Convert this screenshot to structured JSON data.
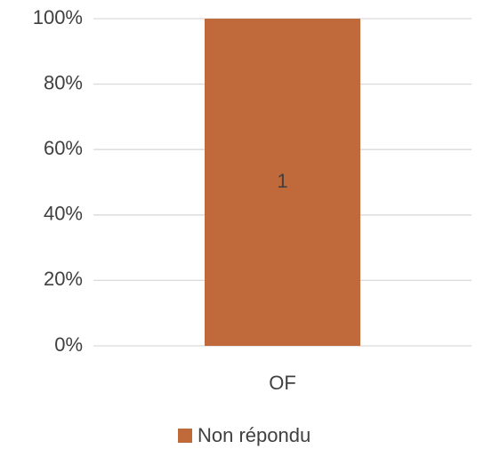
{
  "chart_data": {
    "type": "stacked_percent_bar",
    "categories": [
      "OF"
    ],
    "series": [
      {
        "name": "Non répondu",
        "color": "#c0693b",
        "values": [
          100
        ],
        "counts": [
          1
        ]
      }
    ],
    "ylim": [
      0,
      100
    ],
    "yticks": [
      {
        "value": 0,
        "label": "0%"
      },
      {
        "value": 20,
        "label": "20%"
      },
      {
        "value": 40,
        "label": "40%"
      },
      {
        "value": 60,
        "label": "60%"
      },
      {
        "value": 80,
        "label": "80%"
      },
      {
        "value": 100,
        "label": "100%"
      }
    ],
    "grid": true,
    "legend": "bottom"
  }
}
